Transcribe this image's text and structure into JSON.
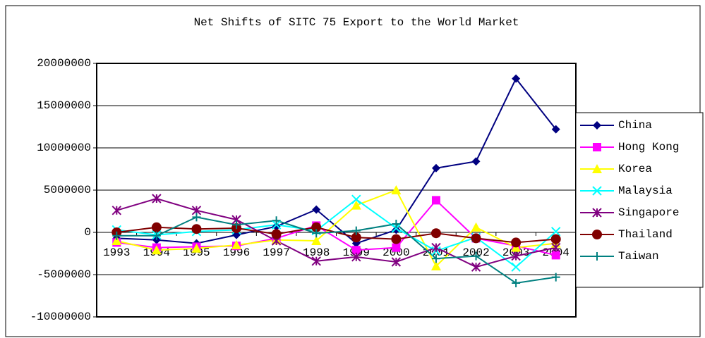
{
  "chart_data": {
    "type": "line",
    "title": "Net Shifts of SITC 75 Export to the World Market",
    "categories": [
      "1993",
      "1994",
      "1995",
      "1996",
      "1997",
      "1998",
      "1999",
      "2000",
      "2001",
      "2002",
      "2003",
      "2004"
    ],
    "series": [
      {
        "name": "China",
        "color": "#000080",
        "marker": "diamond",
        "values": [
          -700000,
          -900000,
          -1300000,
          -300000,
          700000,
          2700000,
          -1300000,
          300000,
          7600000,
          8400000,
          18200000,
          12200000
        ]
      },
      {
        "name": "Hong Kong",
        "color": "#ff00ff",
        "marker": "square",
        "values": [
          -1200000,
          -1800000,
          -1700000,
          -1600000,
          -700000,
          800000,
          -2100000,
          -1800000,
          3800000,
          -700000,
          -1600000,
          -2700000
        ]
      },
      {
        "name": "Korea",
        "color": "#ffff00",
        "marker": "triangle",
        "values": [
          -1000000,
          -2100000,
          -1900000,
          -1500000,
          -900000,
          -1000000,
          3200000,
          5000000,
          -4000000,
          600000,
          -1800000,
          -1300000
        ]
      },
      {
        "name": "Malaysia",
        "color": "#00ffff",
        "marker": "x",
        "values": [
          300000,
          -300000,
          100000,
          300000,
          900000,
          200000,
          3900000,
          500000,
          -2200000,
          -600000,
          -4100000,
          100000
        ]
      },
      {
        "name": "Singapore",
        "color": "#800080",
        "marker": "asterisk",
        "values": [
          2600000,
          4000000,
          2600000,
          1500000,
          -1000000,
          -3400000,
          -2900000,
          -3500000,
          -1800000,
          -4100000,
          -2800000,
          -1800000
        ]
      },
      {
        "name": "Thailand",
        "color": "#800000",
        "marker": "circle",
        "values": [
          0,
          600000,
          400000,
          500000,
          -200000,
          600000,
          -600000,
          -800000,
          -100000,
          -700000,
          -1200000,
          -800000
        ]
      },
      {
        "name": "Taiwan",
        "color": "#008080",
        "marker": "plus",
        "values": [
          -400000,
          -400000,
          1800000,
          900000,
          1400000,
          -100000,
          200000,
          1000000,
          -3100000,
          -2800000,
          -6000000,
          -5300000
        ]
      }
    ],
    "ylim": [
      -10000000,
      20000000
    ],
    "yticks": [
      -10000000,
      -5000000,
      0,
      5000000,
      10000000,
      15000000,
      20000000
    ],
    "grid": true,
    "legend": "right"
  }
}
